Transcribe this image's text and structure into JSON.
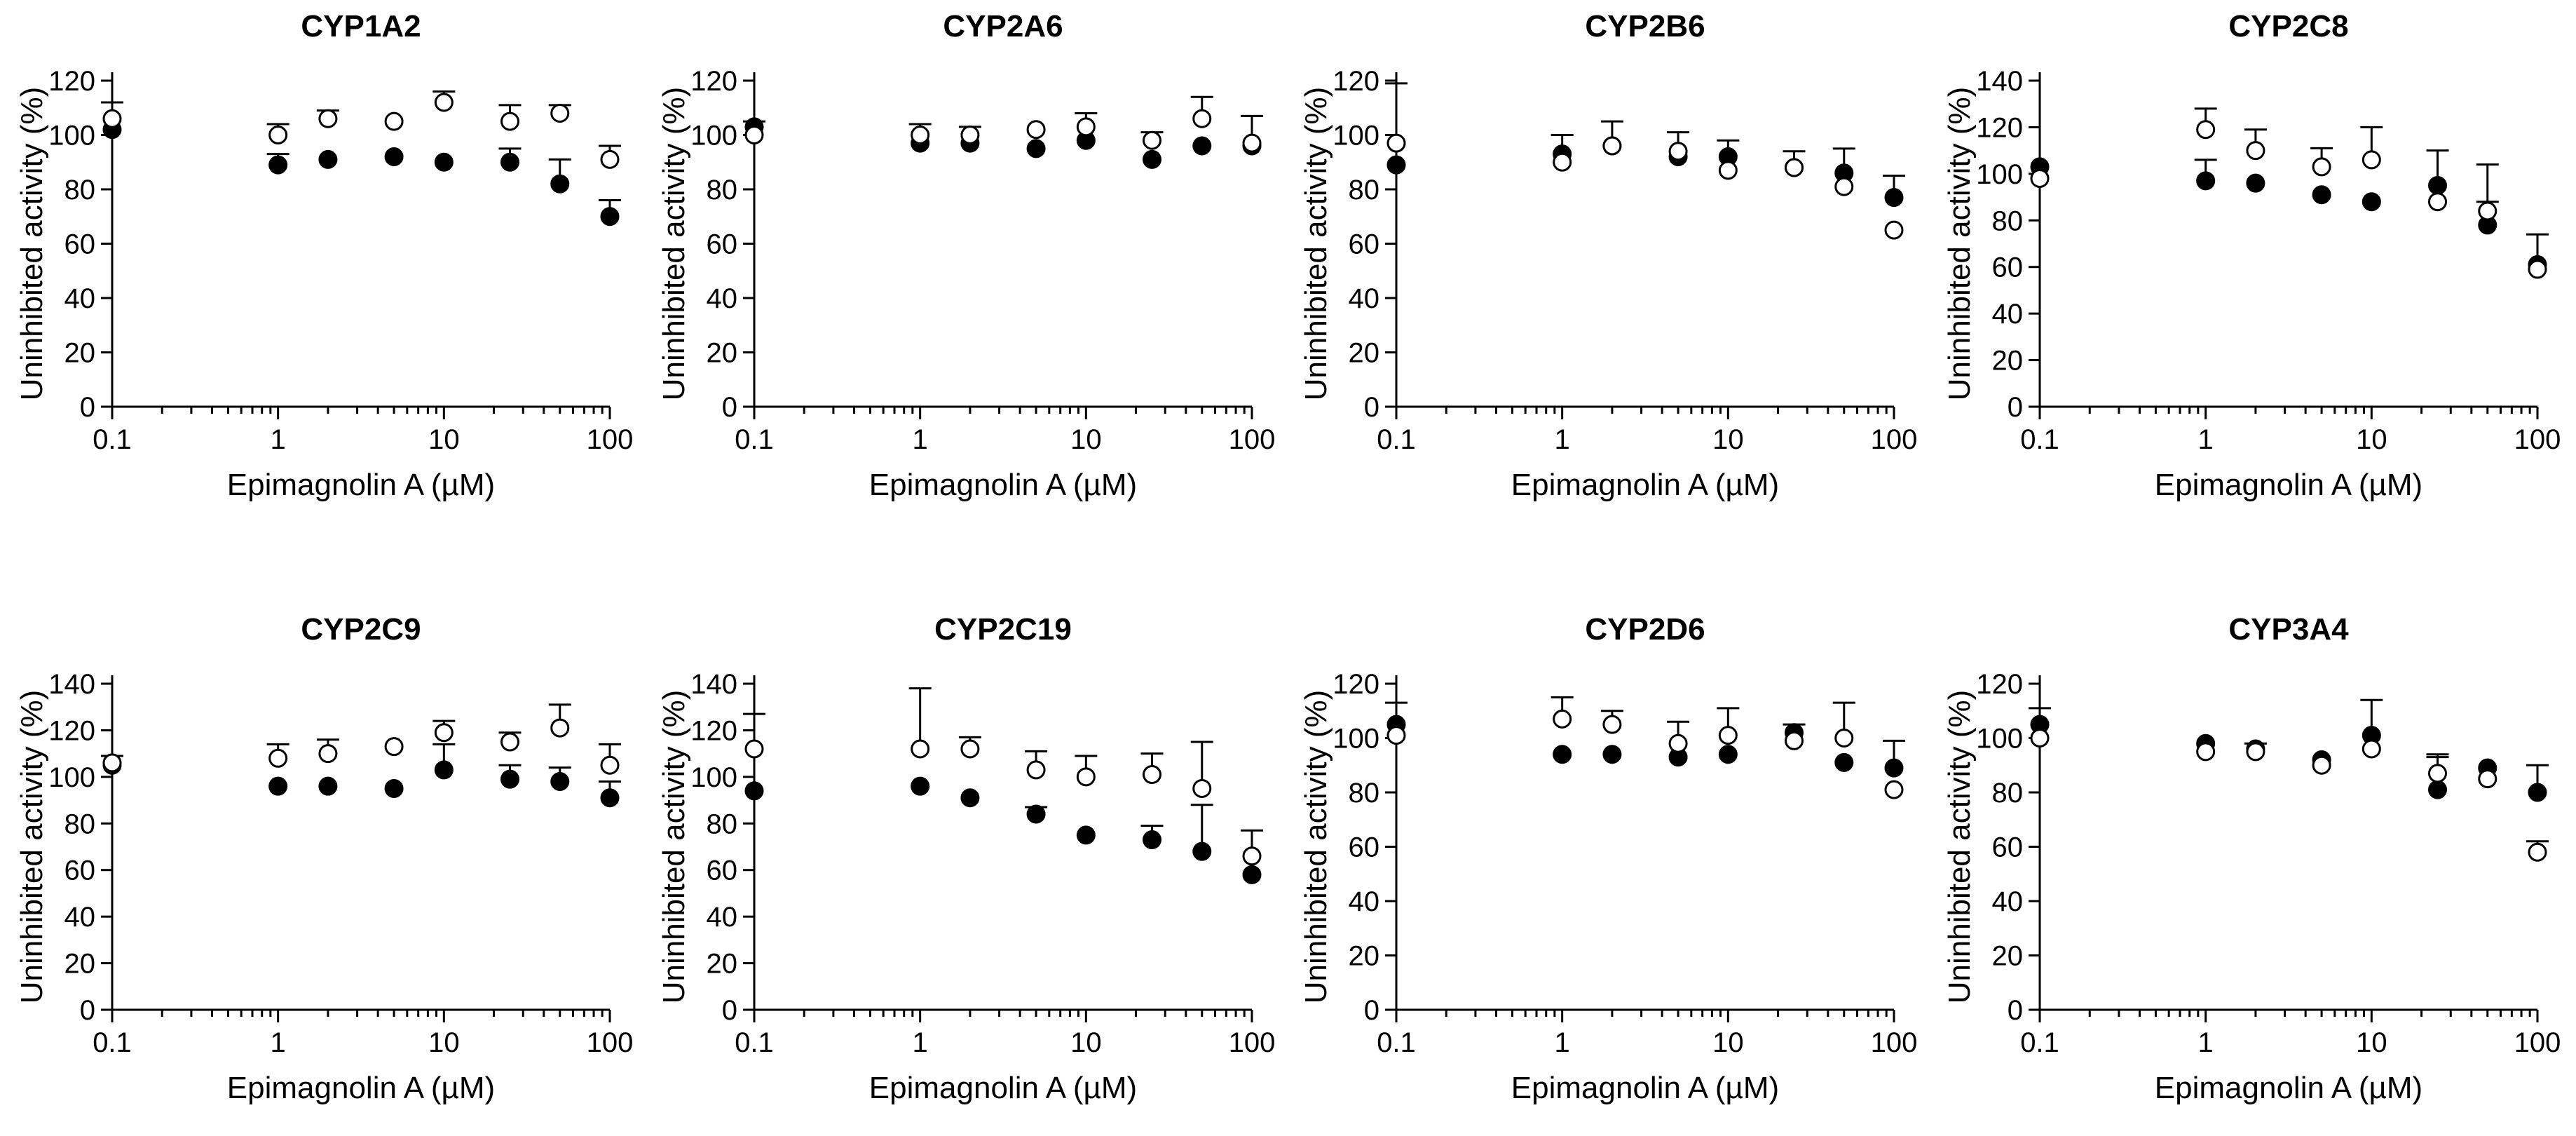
{
  "chart_data": [
    {
      "type": "scatter",
      "title": "CYP1A2",
      "xlabel": "Epimagnolin A (µM)",
      "ylabel": "Uninhibited activity (%)",
      "xscale": "log",
      "xlim": [
        0.1,
        100
      ],
      "ylim": [
        0,
        120
      ],
      "yticks": [
        0,
        20,
        40,
        60,
        80,
        100,
        120
      ],
      "xticks": [
        "0.1",
        "1",
        "10",
        "100"
      ],
      "grid": false,
      "series": [
        {
          "marker": "filled-circle",
          "x": [
            0.1,
            1,
            2,
            5,
            10,
            25,
            50,
            100
          ],
          "y": [
            102,
            89,
            91,
            92,
            90,
            90,
            82,
            70
          ],
          "err": [
            0,
            4,
            0,
            0,
            0,
            5,
            9,
            6
          ]
        },
        {
          "marker": "open-circle",
          "x": [
            0.1,
            1,
            2,
            5,
            10,
            25,
            50,
            100
          ],
          "y": [
            106,
            100,
            106,
            105,
            112,
            105,
            108,
            91
          ],
          "err": [
            6,
            4,
            3,
            0,
            4,
            6,
            3,
            5
          ]
        }
      ]
    },
    {
      "type": "scatter",
      "title": "CYP2A6",
      "xlabel": "Epimagnolin A (µM)",
      "ylabel": "Uninhibited activity (%)",
      "xscale": "log",
      "xlim": [
        0.1,
        100
      ],
      "ylim": [
        0,
        120
      ],
      "yticks": [
        0,
        20,
        40,
        60,
        80,
        100,
        120
      ],
      "xticks": [
        "0.1",
        "1",
        "10",
        "100"
      ],
      "grid": false,
      "series": [
        {
          "marker": "filled-circle",
          "x": [
            0.1,
            1,
            2,
            5,
            10,
            25,
            50,
            100
          ],
          "y": [
            103,
            97,
            97,
            95,
            98,
            91,
            96,
            96
          ],
          "err": [
            2,
            0,
            0,
            0,
            0,
            0,
            0,
            0
          ]
        },
        {
          "marker": "open-circle",
          "x": [
            0.1,
            1,
            2,
            5,
            10,
            25,
            50,
            100
          ],
          "y": [
            100,
            100,
            100,
            102,
            103,
            98,
            106,
            97
          ],
          "err": [
            0,
            4,
            3,
            0,
            5,
            3,
            8,
            10
          ]
        }
      ]
    },
    {
      "type": "scatter",
      "title": "CYP2B6",
      "xlabel": "Epimagnolin A (µM)",
      "ylabel": "Uninhibited activity (%)",
      "xscale": "log",
      "xlim": [
        0.1,
        100
      ],
      "ylim": [
        0,
        120
      ],
      "yticks": [
        0,
        20,
        40,
        60,
        80,
        100,
        120
      ],
      "xticks": [
        "0.1",
        "1",
        "10",
        "100"
      ],
      "grid": false,
      "series": [
        {
          "marker": "filled-circle",
          "x": [
            0.1,
            1,
            2,
            5,
            10,
            25,
            50,
            100
          ],
          "y": [
            89,
            93,
            96,
            92,
            92,
            88,
            86,
            77
          ],
          "err": [
            30,
            7,
            9,
            9,
            6,
            6,
            9,
            8
          ]
        },
        {
          "marker": "open-circle",
          "x": [
            0.1,
            1,
            2,
            5,
            10,
            25,
            50,
            100
          ],
          "y": [
            97,
            90,
            96,
            94,
            87,
            88,
            81,
            65
          ],
          "err": [
            0,
            0,
            0,
            0,
            0,
            0,
            0,
            0
          ]
        }
      ]
    },
    {
      "type": "scatter",
      "title": "CYP2C8",
      "xlabel": "Epimagnolin A (µM)",
      "ylabel": "Uninhibited activity (%)",
      "xscale": "log",
      "xlim": [
        0.1,
        100
      ],
      "ylim": [
        0,
        140
      ],
      "yticks": [
        0,
        20,
        40,
        60,
        80,
        100,
        120,
        140
      ],
      "xticks": [
        "0.1",
        "1",
        "10",
        "100"
      ],
      "grid": false,
      "series": [
        {
          "marker": "filled-circle",
          "x": [
            0.1,
            1,
            2,
            5,
            10,
            25,
            50,
            100
          ],
          "y": [
            103,
            97,
            96,
            91,
            88,
            95,
            78,
            61
          ],
          "err": [
            0,
            9,
            0,
            0,
            0,
            15,
            10,
            0
          ]
        },
        {
          "marker": "open-circle",
          "x": [
            0.1,
            1,
            2,
            5,
            10,
            25,
            50,
            100
          ],
          "y": [
            98,
            119,
            110,
            103,
            106,
            88,
            84,
            59
          ],
          "err": [
            0,
            9,
            9,
            8,
            14,
            0,
            20,
            15
          ]
        }
      ]
    },
    {
      "type": "scatter",
      "title": "CYP2C9",
      "xlabel": "Epimagnolin A (µM)",
      "ylabel": "Uninhibited activity (%)",
      "xscale": "log",
      "xlim": [
        0.1,
        100
      ],
      "ylim": [
        0,
        140
      ],
      "yticks": [
        0,
        20,
        40,
        60,
        80,
        100,
        120,
        140
      ],
      "xticks": [
        "0.1",
        "1",
        "10",
        "100"
      ],
      "grid": false,
      "series": [
        {
          "marker": "filled-circle",
          "x": [
            0.1,
            1,
            2,
            5,
            10,
            25,
            50,
            100
          ],
          "y": [
            105,
            96,
            96,
            95,
            103,
            99,
            98,
            91
          ],
          "err": [
            4,
            0,
            0,
            0,
            11,
            6,
            6,
            7
          ]
        },
        {
          "marker": "open-circle",
          "x": [
            0.1,
            1,
            2,
            5,
            10,
            25,
            50,
            100
          ],
          "y": [
            106,
            108,
            110,
            113,
            119,
            115,
            121,
            105
          ],
          "err": [
            0,
            6,
            6,
            0,
            5,
            4,
            10,
            9
          ]
        }
      ]
    },
    {
      "type": "scatter",
      "title": "CYP2C19",
      "xlabel": "Epimagnolin A (µM)",
      "ylabel": "Uninhibited activity (%)",
      "xscale": "log",
      "xlim": [
        0.1,
        100
      ],
      "ylim": [
        0,
        140
      ],
      "yticks": [
        0,
        20,
        40,
        60,
        80,
        100,
        120,
        140
      ],
      "xticks": [
        "0.1",
        "1",
        "10",
        "100"
      ],
      "grid": false,
      "series": [
        {
          "marker": "filled-circle",
          "x": [
            0.1,
            1,
            2,
            5,
            10,
            25,
            50,
            100
          ],
          "y": [
            94,
            96,
            91,
            84,
            75,
            73,
            68,
            58
          ],
          "err": [
            0,
            0,
            0,
            3,
            0,
            6,
            20,
            0
          ]
        },
        {
          "marker": "open-circle",
          "x": [
            0.1,
            1,
            2,
            5,
            10,
            25,
            50,
            100
          ],
          "y": [
            112,
            112,
            112,
            103,
            100,
            101,
            95,
            66
          ],
          "err": [
            15,
            26,
            5,
            8,
            9,
            9,
            20,
            11
          ]
        }
      ]
    },
    {
      "type": "scatter",
      "title": "CYP2D6",
      "xlabel": "Epimagnolin A (µM)",
      "ylabel": "Uninhibited activity (%)",
      "xscale": "log",
      "xlim": [
        0.1,
        100
      ],
      "ylim": [
        0,
        120
      ],
      "yticks": [
        0,
        20,
        40,
        60,
        80,
        100,
        120
      ],
      "xticks": [
        "0.1",
        "1",
        "10",
        "100"
      ],
      "grid": false,
      "series": [
        {
          "marker": "filled-circle",
          "x": [
            0.1,
            1,
            2,
            5,
            10,
            25,
            50,
            100
          ],
          "y": [
            105,
            94,
            94,
            93,
            94,
            102,
            91,
            89
          ],
          "err": [
            8,
            0,
            0,
            0,
            0,
            3,
            0,
            10
          ]
        },
        {
          "marker": "open-circle",
          "x": [
            0.1,
            1,
            2,
            5,
            10,
            25,
            50,
            100
          ],
          "y": [
            101,
            107,
            105,
            98,
            101,
            99,
            100,
            81
          ],
          "err": [
            0,
            8,
            5,
            8,
            10,
            0,
            13,
            0
          ]
        }
      ]
    },
    {
      "type": "scatter",
      "title": "CYP3A4",
      "xlabel": "Epimagnolin A (µM)",
      "ylabel": "Uninhibited activity (%)",
      "xscale": "log",
      "xlim": [
        0.1,
        100
      ],
      "ylim": [
        0,
        120
      ],
      "yticks": [
        0,
        20,
        40,
        60,
        80,
        100,
        120
      ],
      "xticks": [
        "0.1",
        "1",
        "10",
        "100"
      ],
      "grid": false,
      "series": [
        {
          "marker": "filled-circle",
          "x": [
            0.1,
            1,
            2,
            5,
            10,
            25,
            50,
            100
          ],
          "y": [
            105,
            98,
            96,
            92,
            101,
            81,
            89,
            80
          ],
          "err": [
            6,
            0,
            0,
            0,
            0,
            12,
            0,
            10
          ]
        },
        {
          "marker": "open-circle",
          "x": [
            0.1,
            1,
            2,
            5,
            10,
            25,
            50,
            100
          ],
          "y": [
            100,
            95,
            95,
            90,
            96,
            87,
            85,
            58
          ],
          "err": [
            0,
            0,
            3,
            0,
            18,
            7,
            0,
            4
          ]
        }
      ]
    }
  ]
}
